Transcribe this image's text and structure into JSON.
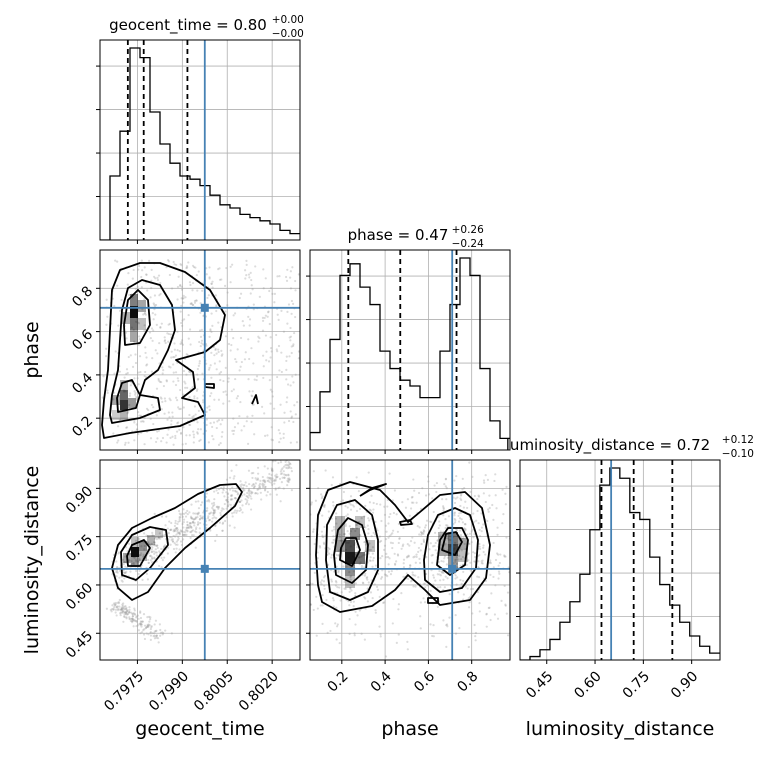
{
  "chart_data": {
    "type": "corner",
    "parameters": [
      "geocent_time",
      "phase",
      "luminosity_distance"
    ],
    "truths": {
      "geocent_time": 0.79975,
      "phase": 0.71,
      "luminosity_distance": 0.65
    },
    "titles": [
      {
        "param": "geocent_time",
        "base": "geocent_time = 0.80",
        "plus": "+0.00",
        "minus": "−0.00"
      },
      {
        "param": "phase",
        "base": "phase = 0.47",
        "plus": "+0.26",
        "minus": "−0.24"
      },
      {
        "param": "luminosity_distance",
        "base": "luminosity_distance = 0.72",
        "plus": "+0.12",
        "minus": "−0.10"
      }
    ],
    "axis_labels": {
      "x": [
        "geocent_time",
        "phase",
        "luminosity_distance"
      ],
      "y": [
        "phase",
        "luminosity_distance"
      ]
    },
    "ranges": {
      "geocent_time": [
        0.79625,
        0.80293
      ],
      "phase": [
        0.053,
        0.977
      ],
      "luminosity_distance": [
        0.367,
        0.988
      ]
    },
    "ticks": {
      "geocent_time": {
        "values": [
          0.7975,
          0.799,
          0.8005,
          0.802
        ],
        "labels": [
          "0.7975",
          "0.7990",
          "0.8005",
          "0.8020"
        ]
      },
      "phase": {
        "values": [
          0.2,
          0.4,
          0.6,
          0.8
        ],
        "labels": [
          "0.2",
          "0.4",
          "0.6",
          "0.8"
        ]
      },
      "luminosity_distance": {
        "values": [
          0.45,
          0.6,
          0.75,
          0.9
        ],
        "labels": [
          "0.45",
          "0.60",
          "0.75",
          "0.90"
        ]
      }
    },
    "quantiles": {
      "geocent_time": [
        0.79718,
        0.79771,
        0.79917
      ],
      "phase": [
        0.23,
        0.47,
        0.73
      ],
      "luminosity_distance": [
        0.62,
        0.72,
        0.84
      ]
    },
    "histograms": {
      "geocent_time": {
        "edges_start": 0.79625,
        "edge_step": 0.000334,
        "counts": [
          0,
          0.2,
          0.34,
          0.6,
          0.57,
          0.4,
          0.3,
          0.24,
          0.2,
          0.19,
          0.17,
          0.14,
          0.11,
          0.1,
          0.08,
          0.07,
          0.06,
          0.05,
          0.03,
          0.02
        ],
        "ymax": 0.6
      },
      "phase": {
        "edges_start": 0.053,
        "edge_step": 0.0462,
        "counts": [
          0.03,
          0.1,
          0.19,
          0.3,
          0.32,
          0.28,
          0.25,
          0.17,
          0.14,
          0.12,
          0.11,
          0.09,
          0.09,
          0.17,
          0.25,
          0.33,
          0.3,
          0.14,
          0.05,
          0.02
        ],
        "ymax": 0.33
      },
      "luminosity_distance": {
        "edges_start": 0.367,
        "edge_step": 0.031,
        "counts": [
          0.0,
          0.01,
          0.03,
          0.06,
          0.11,
          0.17,
          0.25,
          0.38,
          0.51,
          0.56,
          0.53,
          0.43,
          0.41,
          0.3,
          0.22,
          0.16,
          0.11,
          0.07,
          0.04,
          0.02
        ],
        "ymax": 0.56
      }
    },
    "grid": true,
    "colors": {
      "truth": "#4682b4",
      "contour": "#000000",
      "hist": "#000000",
      "grid": "#b0b0b0",
      "scatter": "#9a9a9a"
    }
  }
}
